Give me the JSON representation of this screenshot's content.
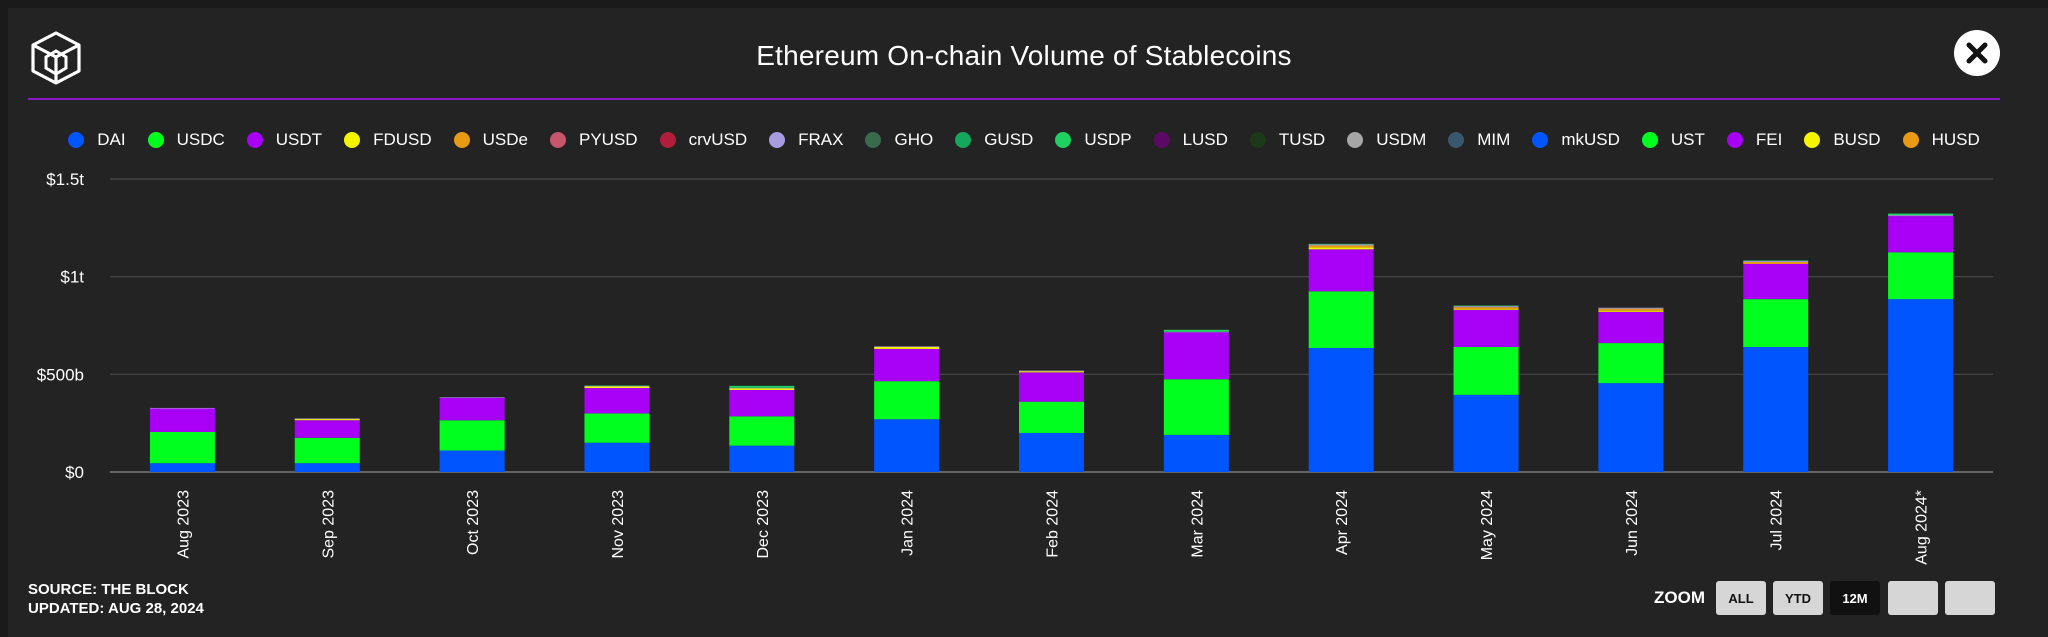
{
  "title": "Ethereum On-chain Volume of Stablecoins",
  "source_line": "SOURCE: THE BLOCK",
  "updated_line": "UPDATED: AUG 28, 2024",
  "zoom": {
    "label": "ZOOM",
    "buttons": [
      {
        "label": "ALL",
        "active": false
      },
      {
        "label": "YTD",
        "active": false
      },
      {
        "label": "12M",
        "active": true
      },
      {
        "label": "",
        "active": false
      },
      {
        "label": "",
        "active": false
      }
    ]
  },
  "icons": {
    "logo": "the-block-cube-logo-icon",
    "close": "close-icon"
  },
  "chart_data": {
    "type": "bar",
    "stacked": true,
    "title": "Ethereum On-chain Volume of Stablecoins",
    "xlabel": "",
    "ylabel": "",
    "ylim": [
      0,
      1500
    ],
    "y_unit": "billions USD",
    "y_ticks": [
      {
        "value": 0,
        "label": "$0"
      },
      {
        "value": 500,
        "label": "$500b"
      },
      {
        "value": 1000,
        "label": "$1t"
      },
      {
        "value": 1500,
        "label": "$1.5t"
      }
    ],
    "grid": true,
    "legend_position": "top-center",
    "categories": [
      "Aug 2023",
      "Sep 2023",
      "Oct 2023",
      "Nov 2023",
      "Dec 2023",
      "Jan 2024",
      "Feb 2024",
      "Mar 2024",
      "Apr 2024",
      "May 2024",
      "Jun 2024",
      "Jul 2024",
      "Aug 2024*"
    ],
    "series": [
      {
        "name": "DAI",
        "color": "#0055ff",
        "values": [
          45,
          45,
          110,
          150,
          135,
          270,
          200,
          190,
          635,
          395,
          455,
          640,
          885
        ]
      },
      {
        "name": "USDC",
        "color": "#00ff1e",
        "values": [
          160,
          130,
          155,
          150,
          150,
          195,
          160,
          285,
          290,
          245,
          205,
          245,
          240
        ]
      },
      {
        "name": "USDT",
        "color": "#a700f5",
        "values": [
          120,
          90,
          115,
          130,
          135,
          165,
          150,
          240,
          215,
          190,
          160,
          180,
          185
        ]
      },
      {
        "name": "FDUSD",
        "color": "#f5f500",
        "values": [
          0,
          6,
          0,
          8,
          8,
          10,
          6,
          0,
          10,
          4,
          6,
          0,
          0
        ]
      },
      {
        "name": "USDe",
        "color": "#e89a12",
        "values": [
          0,
          0,
          0,
          0,
          0,
          0,
          0,
          0,
          10,
          10,
          10,
          10,
          0
        ]
      },
      {
        "name": "PYUSD",
        "color": "#c8566a",
        "values": [
          0,
          0,
          0,
          0,
          0,
          0,
          0,
          0,
          0,
          0,
          0,
          0,
          0
        ]
      },
      {
        "name": "crvUSD",
        "color": "#b01e3c",
        "values": [
          0,
          0,
          0,
          0,
          0,
          0,
          0,
          0,
          0,
          0,
          0,
          0,
          0
        ]
      },
      {
        "name": "FRAX",
        "color": "#a99be0",
        "values": [
          3,
          3,
          3,
          3,
          3,
          3,
          3,
          3,
          5,
          5,
          5,
          5,
          5
        ]
      },
      {
        "name": "GHO",
        "color": "#3a6a4e",
        "values": [
          0,
          0,
          0,
          0,
          0,
          0,
          0,
          0,
          0,
          0,
          0,
          0,
          0
        ]
      },
      {
        "name": "GUSD",
        "color": "#14a85c",
        "values": [
          0,
          0,
          0,
          0,
          0,
          0,
          0,
          0,
          0,
          0,
          0,
          0,
          0
        ]
      },
      {
        "name": "USDP",
        "color": "#1ed160",
        "values": [
          0,
          0,
          0,
          2,
          10,
          0,
          0,
          10,
          3,
          3,
          0,
          3,
          8
        ]
      },
      {
        "name": "LUSD",
        "color": "#5a0a64",
        "values": [
          0,
          0,
          0,
          0,
          0,
          0,
          0,
          0,
          0,
          0,
          0,
          0,
          0
        ]
      },
      {
        "name": "TUSD",
        "color": "#1c3a18",
        "values": [
          0,
          0,
          0,
          0,
          0,
          0,
          0,
          0,
          0,
          0,
          0,
          0,
          0
        ]
      },
      {
        "name": "USDM",
        "color": "#a6a6a6",
        "values": [
          0,
          0,
          0,
          0,
          0,
          0,
          0,
          0,
          0,
          0,
          0,
          0,
          0
        ]
      },
      {
        "name": "MIM",
        "color": "#39586e",
        "values": [
          0,
          0,
          0,
          0,
          0,
          0,
          0,
          0,
          0,
          0,
          0,
          0,
          0
        ]
      },
      {
        "name": "mkUSD",
        "color": "#0055ff",
        "values": [
          0,
          0,
          0,
          0,
          0,
          0,
          0,
          0,
          0,
          0,
          0,
          0,
          0
        ]
      },
      {
        "name": "UST",
        "color": "#00ff1e",
        "values": [
          0,
          0,
          0,
          0,
          0,
          0,
          0,
          0,
          0,
          0,
          0,
          0,
          0
        ]
      },
      {
        "name": "FEI",
        "color": "#a700f5",
        "values": [
          0,
          0,
          0,
          0,
          0,
          0,
          0,
          0,
          0,
          0,
          0,
          0,
          0
        ]
      },
      {
        "name": "BUSD",
        "color": "#f5f500",
        "values": [
          0,
          0,
          0,
          0,
          0,
          0,
          0,
          0,
          0,
          0,
          0,
          0,
          0
        ]
      },
      {
        "name": "HUSD",
        "color": "#e89a12",
        "values": [
          0,
          0,
          0,
          0,
          0,
          0,
          0,
          0,
          0,
          0,
          0,
          0,
          0
        ]
      }
    ]
  }
}
